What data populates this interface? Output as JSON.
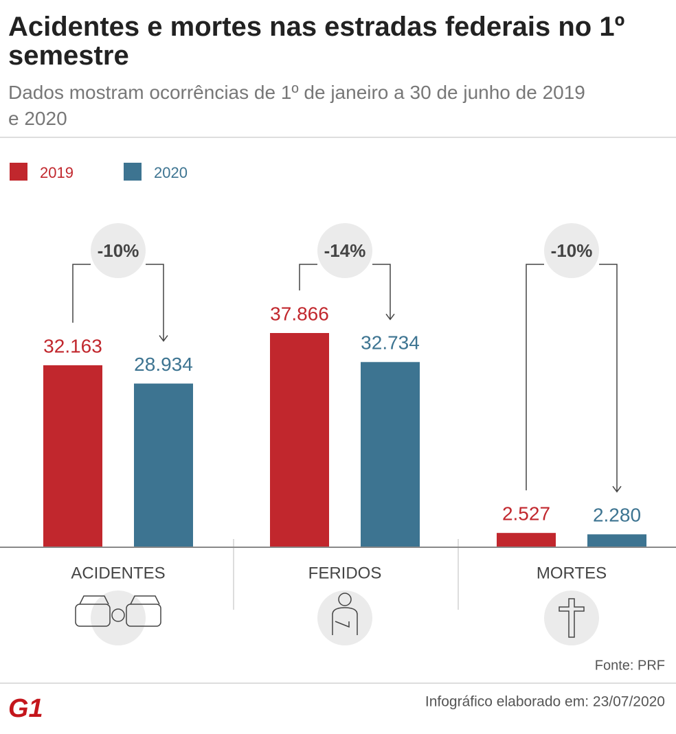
{
  "chart_data": {
    "type": "bar",
    "title": "Acidentes e mortes nas estradas federais no 1º semestre",
    "subtitle": "Dados mostram ocorrências de 1º de janeiro a 30 de junho de 2019 e 2020",
    "categories": [
      "ACIDENTES",
      "FERIDOS",
      "MORTES"
    ],
    "series": [
      {
        "name": "2019",
        "color": "#c1272d",
        "values": [
          32163,
          37866,
          2527
        ],
        "value_labels": [
          "32.163",
          "37.866",
          "2.527"
        ]
      },
      {
        "name": "2020",
        "color": "#3d7491",
        "values": [
          28934,
          32734,
          2280
        ],
        "value_labels": [
          "28.934",
          "32.734",
          "2.280"
        ]
      }
    ],
    "changes": [
      "-10%",
      "-14%",
      "-10%"
    ],
    "source": "Fonte: PRF",
    "note": "Infográfico elaborado em: 23/07/2020",
    "logo": "G1"
  }
}
